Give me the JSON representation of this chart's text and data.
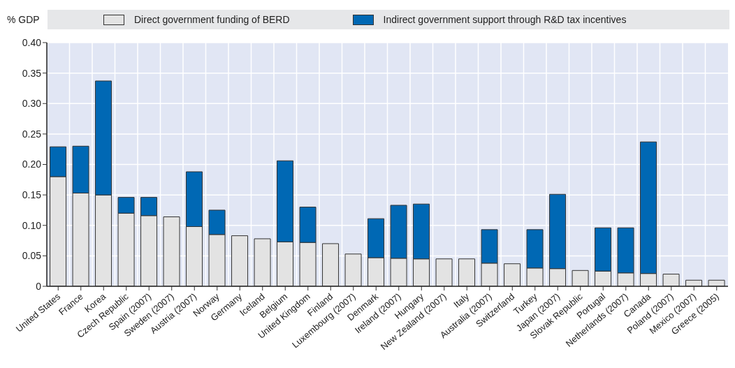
{
  "chart_data": {
    "type": "bar",
    "stacked": true,
    "ylabel": "% GDP",
    "categories": [
      "United States",
      "France",
      "Korea",
      "Czech Republic",
      "Spain (2007)",
      "Sweden (2007)",
      "Austria (2007)",
      "Norway",
      "Germany",
      "Iceland",
      "Belgium",
      "United Kingdom",
      "Finland",
      "Luxembourg (2007)",
      "Denmark",
      "Ireland (2007)",
      "Hungary",
      "New Zealand (2007)",
      "Italy",
      "Australia (2007)",
      "Switzerland",
      "Turkey",
      "Japan (2007)",
      "Slovak Republic",
      "Portugal",
      "Netherlands (2007)",
      "Canada",
      "Poland (2007)",
      "Mexico (2007)",
      "Greece (2005)"
    ],
    "series": [
      {
        "name": "Direct government funding of BERD",
        "color": "#e3e3e3",
        "values": [
          0.18,
          0.153,
          0.15,
          0.12,
          0.116,
          0.114,
          0.098,
          0.085,
          0.083,
          0.078,
          0.073,
          0.072,
          0.07,
          0.053,
          0.047,
          0.046,
          0.045,
          0.045,
          0.045,
          0.038,
          0.037,
          0.03,
          0.029,
          0.026,
          0.025,
          0.022,
          0.021,
          0.02,
          0.01,
          0.01
        ]
      },
      {
        "name": "Indirect government support through R&D tax incentives",
        "color": "#0068b4",
        "values": [
          0.049,
          0.077,
          0.187,
          0.026,
          0.03,
          null,
          0.09,
          0.04,
          null,
          null,
          0.133,
          0.058,
          null,
          null,
          0.064,
          0.087,
          0.09,
          null,
          null,
          0.055,
          null,
          0.063,
          0.122,
          null,
          0.071,
          0.074,
          0.216,
          null,
          null,
          null
        ]
      }
    ],
    "ylim": [
      0,
      0.4
    ],
    "yticks": [
      0,
      0.05,
      {
        "value": 0.1,
        "label": "0.10"
      },
      0.15,
      {
        "value": 0.2,
        "label": "0.20"
      },
      0.25,
      {
        "value": 0.3,
        "label": "0.30"
      },
      0.35,
      {
        "value": 0.4,
        "label": "0.40"
      }
    ],
    "grid": true,
    "legend": "top"
  }
}
